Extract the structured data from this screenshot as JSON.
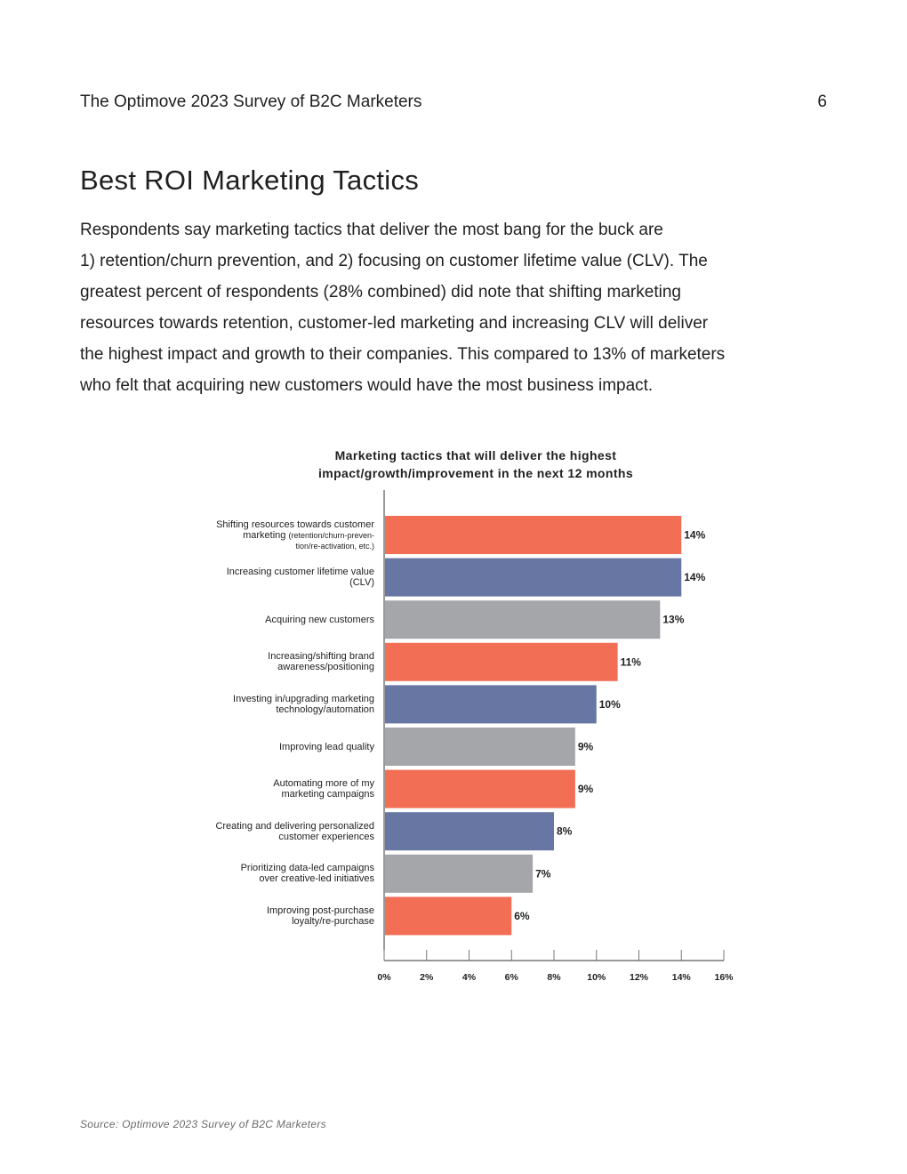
{
  "header": {
    "running_title": "The Optimove 2023 Survey of B2C Marketers",
    "page_number": "6"
  },
  "section": {
    "title": "Best ROI Marketing Tactics",
    "body_lines": [
      "Respondents say marketing tactics that deliver the most bang for the buck are",
      "1) retention/churn prevention, and 2) focusing on customer lifetime value (CLV). The",
      "greatest percent of respondents (28% combined) did note that shifting marketing",
      "resources towards retention, customer-led marketing and increasing CLV will deliver",
      "the highest impact and growth to their companies. This compared to 13% of marketers",
      "who felt that acquiring new customers would have the most business impact."
    ]
  },
  "chart_data": {
    "type": "bar",
    "orientation": "horizontal",
    "title_lines": [
      "Marketing tactics that will deliver the highest",
      "impact/growth/improvement in the next 12 months"
    ],
    "categories": [
      {
        "lines": [
          "Shifting resources towards customer",
          "marketing"
        ],
        "small_lines": [
          "(retention/churn-preven-",
          "tion/re-activation, etc.)"
        ]
      },
      {
        "lines": [
          "Increasing customer lifetime value",
          "(CLV)"
        ]
      },
      {
        "lines": [
          "Acquiring new customers"
        ]
      },
      {
        "lines": [
          "Increasing/shifting brand",
          "awareness/positioning"
        ]
      },
      {
        "lines": [
          "Investing in/upgrading marketing",
          "technology/automation"
        ]
      },
      {
        "lines": [
          "Improving lead quality"
        ]
      },
      {
        "lines": [
          "Automating more of my",
          "marketing campaigns"
        ]
      },
      {
        "lines": [
          "Creating and delivering personalized",
          "customer experiences"
        ]
      },
      {
        "lines": [
          "Prioritizing data-led campaigns",
          "over creative-led initiatives"
        ]
      },
      {
        "lines": [
          "Improving post-purchase",
          "loyalty/re-purchase"
        ]
      }
    ],
    "values": [
      14,
      14,
      13,
      11,
      10,
      9,
      9,
      8,
      7,
      6
    ],
    "value_labels": [
      "14%",
      "14%",
      "13%",
      "11%",
      "10%",
      "9%",
      "9%",
      "8%",
      "7%",
      "6%"
    ],
    "bar_colors": [
      "#f26e55",
      "#6776a3",
      "#a5a6aa",
      "#f26e55",
      "#6776a3",
      "#a5a6aa",
      "#f26e55",
      "#6776a3",
      "#a5a6aa",
      "#f26e55"
    ],
    "xlim": [
      0,
      16
    ],
    "x_ticks": [
      0,
      2,
      4,
      6,
      8,
      10,
      12,
      14,
      16
    ],
    "x_tick_labels": [
      "0%",
      "2%",
      "4%",
      "6%",
      "8%",
      "10%",
      "12%",
      "14%",
      "16%"
    ],
    "grid": false,
    "legend": "none"
  },
  "footer": {
    "source": "Source: Optimove 2023 Survey of B2C Marketers"
  }
}
